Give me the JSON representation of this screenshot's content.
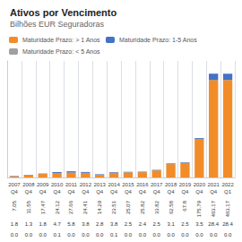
{
  "chart_data": {
    "type": "bar",
    "stacked": true,
    "title": "Ativos por Vencimento",
    "subtitle": "Bilhões EUR Seguradoras",
    "categories": [
      "2007",
      "2008",
      "2009",
      "2010",
      "2011",
      "2012",
      "2013",
      "2014",
      "2015",
      "2016",
      "2017",
      "2018",
      "2019",
      "2020",
      "2021",
      "2022"
    ],
    "quarters": [
      "Q4",
      "Q4",
      "Q4",
      "Q4",
      "Q4",
      "Q4",
      "Q4",
      "Q4",
      "Q4",
      "Q4",
      "Q4",
      "Q4",
      "Q4",
      "Q4",
      "Q4",
      "Q1"
    ],
    "series": [
      {
        "name": "Maturidade Prazo: > 1 Anos",
        "color": "#F28C28",
        "values": [
          5.25,
          10.25,
          15.67,
          19.32,
          21.86,
          20.61,
          11.49,
          19.61,
          22.57,
          23.42,
          31.32,
          59.48,
          65.3,
          172.29,
          434.77,
          434.77
        ]
      },
      {
        "name": "Maturidade Prazo: 1-5 Anos",
        "color": "#4472C4",
        "values": [
          1.8,
          1.3,
          1.8,
          4.7,
          5.8,
          3.8,
          2.8,
          3.8,
          2.5,
          2.4,
          2.5,
          3.1,
          2.5,
          3.5,
          28.4,
          28.4
        ]
      },
      {
        "name": "Maturidade Prazo: < 5 Anos",
        "color": "#A0A0A0",
        "values": [
          0.0,
          0.0,
          0.0,
          0.1,
          0.0,
          0.0,
          0.0,
          0.1,
          0.0,
          0.0,
          0.0,
          0.0,
          0.0,
          0.0,
          0.0,
          0.0
        ]
      }
    ],
    "table_rows": [
      {
        "values": [
          7.05,
          11.55,
          17.47,
          24.12,
          27.66,
          24.41,
          14.29,
          23.51,
          25.07,
          25.82,
          33.82,
          62.58,
          67.8,
          175.79,
          463.17,
          463.17
        ]
      },
      {
        "values": [
          1.8,
          1.3,
          1.8,
          4.7,
          5.8,
          3.8,
          2.8,
          3.8,
          2.5,
          2.4,
          2.5,
          3.1,
          2.5,
          3.5,
          28.4,
          28.4
        ]
      },
      {
        "values": [
          0.0,
          0.0,
          0.0,
          0.1,
          0.0,
          0.0,
          0.0,
          0.1,
          0.0,
          0.0,
          0.0,
          0.0,
          0.0,
          0.0,
          0.0,
          0.0
        ],
        "value_labels": [
          "0.0",
          "0.0",
          "0.0",
          "0.1",
          "0.0",
          "0.0",
          "0.0",
          "0.1",
          "0.0",
          "0.0",
          "0.0",
          "0.0",
          "0.0",
          "0.0",
          "0.0",
          "0.0"
        ]
      }
    ],
    "ylim": [
      0,
      520
    ],
    "grid": true,
    "legend": "top",
    "tick_labels": "x"
  }
}
